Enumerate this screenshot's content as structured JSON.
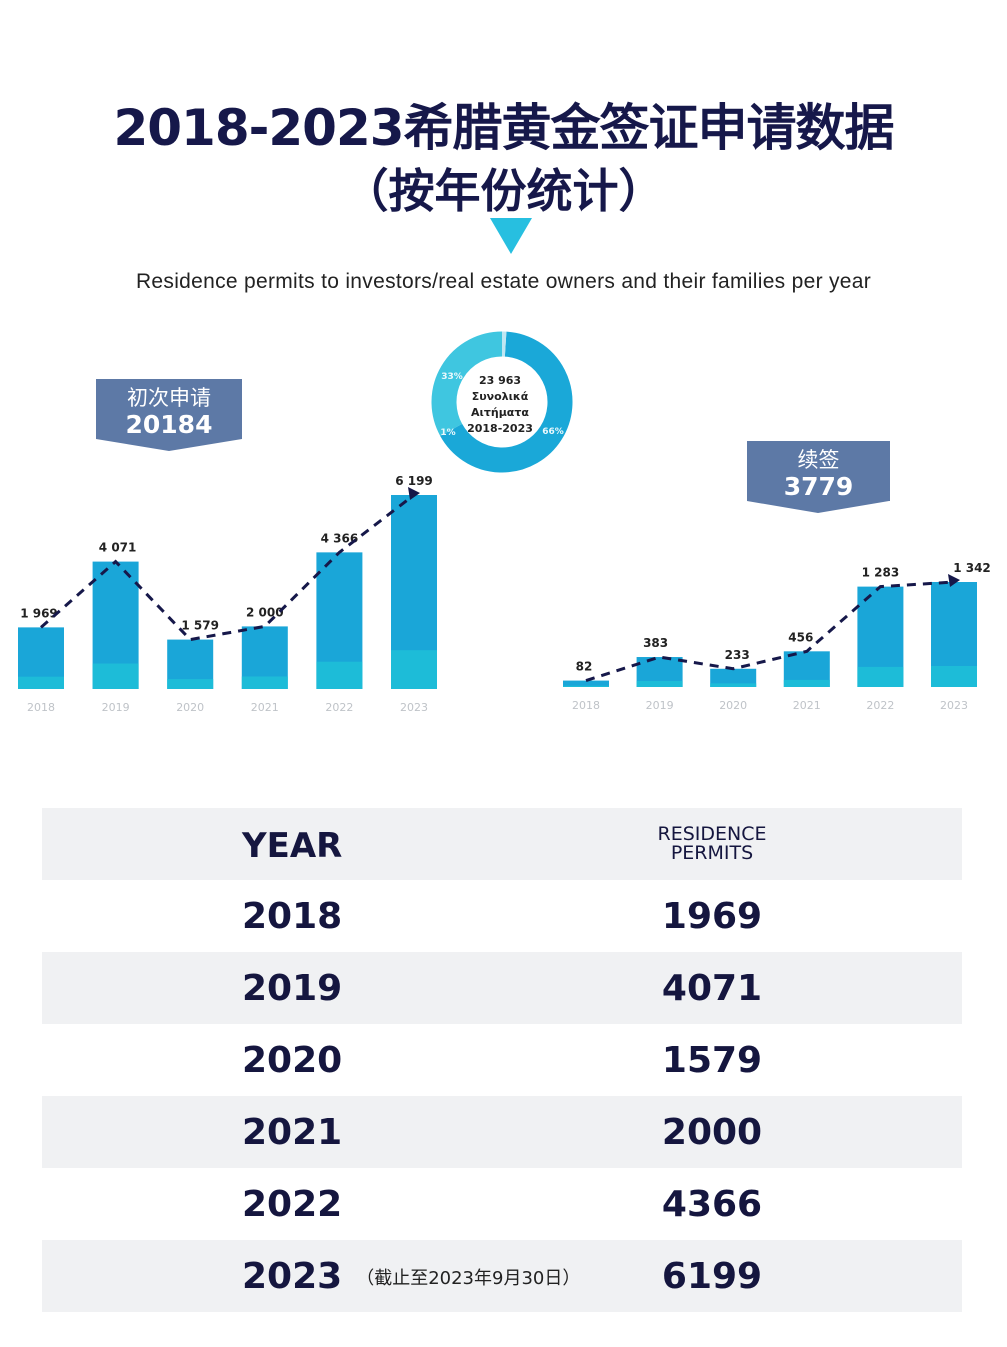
{
  "title_line1": "2018-2023希腊黄金签证申请数据",
  "title_line2": "（按年份统计）",
  "subtitle": "Residence permits to investors/real estate owners and their families per year",
  "colors": {
    "navy": "#15163f",
    "cyan": "#27bfe0",
    "bar_dark": "#1aa6d8",
    "bar_light": "#1fc0d8",
    "banner": "#5d79a6"
  },
  "banners": {
    "initial": {
      "label": "初次申请",
      "value": "20184"
    },
    "renewal": {
      "label": "续签",
      "value": "3779"
    }
  },
  "donut": {
    "center_lines": [
      "23 963",
      "Συνολικά",
      "Αιτήματα",
      "2018-2023"
    ],
    "slice_labels": [
      "33%",
      "66%",
      "1%"
    ]
  },
  "chart_data": [
    {
      "type": "bar",
      "categories": [
        "2018",
        "2019",
        "2020",
        "2021",
        "2022",
        "2023"
      ],
      "values": [
        1969,
        4071,
        1579,
        2000,
        4366,
        6199
      ],
      "labels": [
        "1 969",
        "4 071",
        "1 579",
        "2 000",
        "4 366",
        "6 199"
      ],
      "trend_line": true
    },
    {
      "type": "bar",
      "categories": [
        "2018",
        "2019",
        "2020",
        "2021",
        "2022",
        "2023"
      ],
      "values": [
        82,
        383,
        233,
        456,
        1283,
        1342
      ],
      "labels": [
        "82",
        "383",
        "233",
        "456",
        "1 283",
        "1 342"
      ],
      "trend_line": true
    },
    {
      "type": "pie",
      "categories": [
        "33%",
        "66%",
        "1%"
      ],
      "values": [
        33,
        66,
        1
      ]
    }
  ],
  "table": {
    "header_year": "YEAR",
    "header_value_line1": "RESIDENCE",
    "header_value_line2": "PERMITS",
    "rows": [
      {
        "year": "2018",
        "value": "1969",
        "note": ""
      },
      {
        "year": "2019",
        "value": "4071",
        "note": ""
      },
      {
        "year": "2020",
        "value": "1579",
        "note": ""
      },
      {
        "year": "2021",
        "value": "2000",
        "note": ""
      },
      {
        "year": "2022",
        "value": "4366",
        "note": ""
      },
      {
        "year": "2023",
        "value": "6199",
        "note": "（截止至2023年9月30日）"
      }
    ]
  }
}
